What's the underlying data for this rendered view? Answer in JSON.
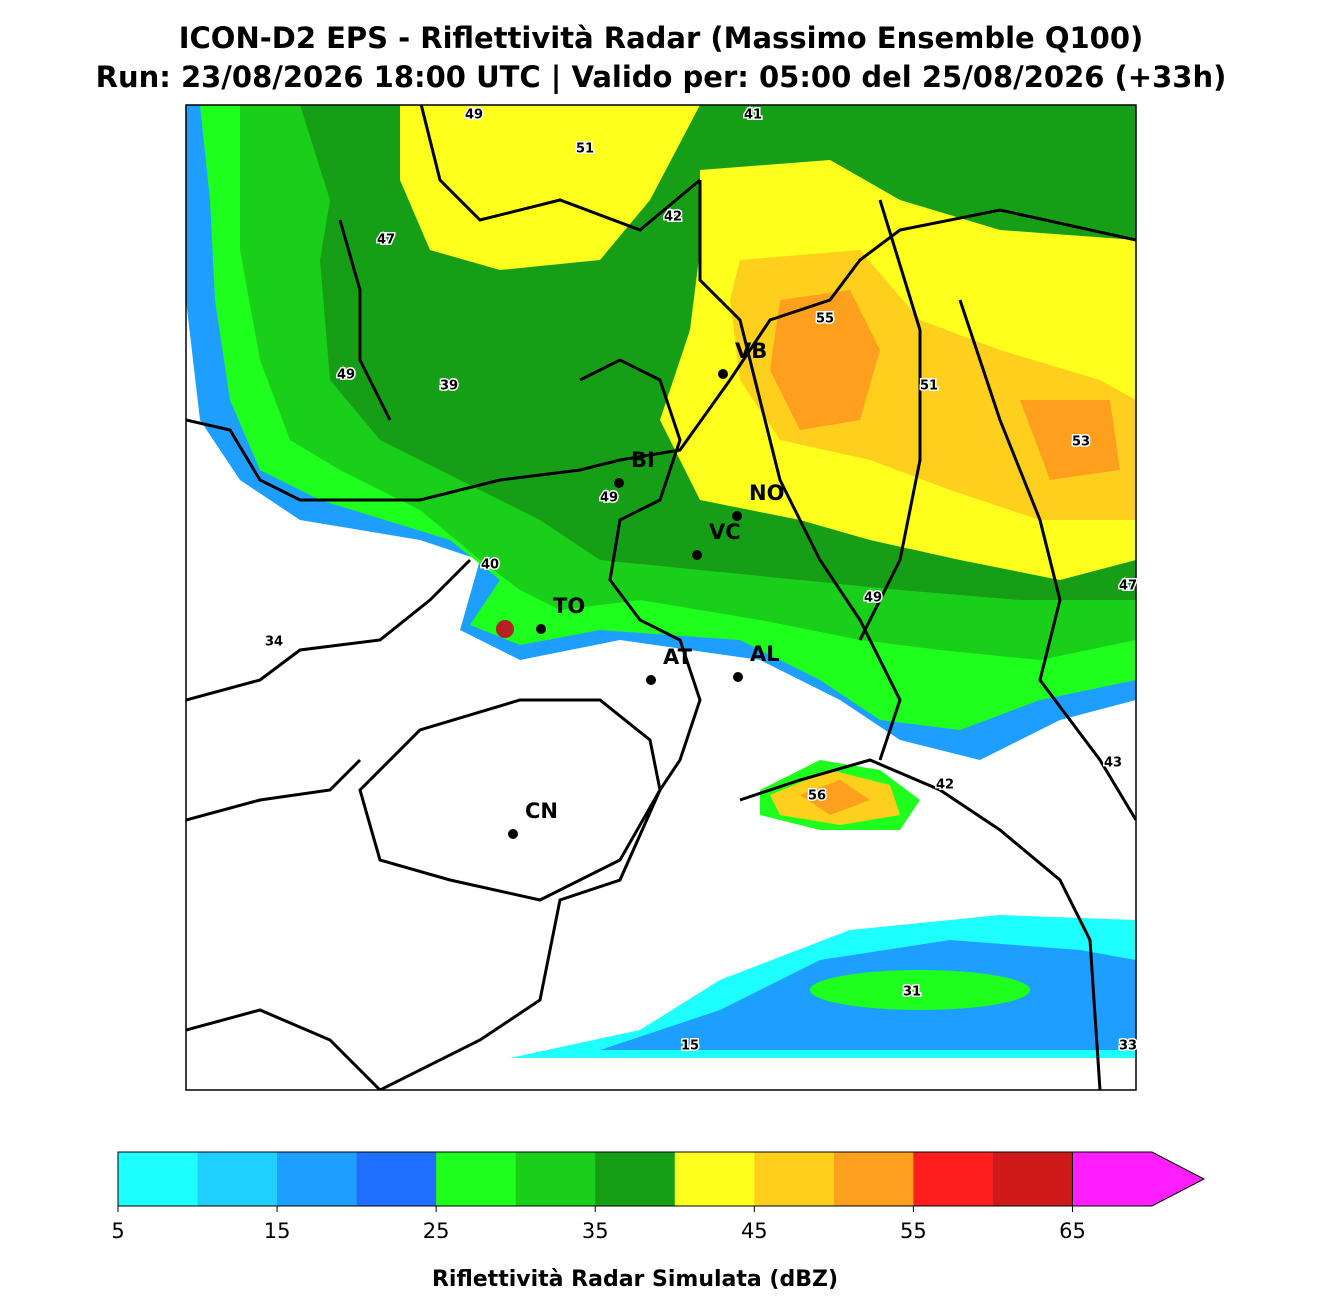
{
  "title": [
    "ICON-D2 EPS - Riflettività Radar (Massimo Ensemble Q100)",
    "Run: 23/08/2026 18:00 UTC | Valido per: 05:00 del 25/08/2026 (+33h)"
  ],
  "cities": [
    "VB",
    "BI",
    "NO",
    "VC",
    "TO",
    "AT",
    "AL",
    "CN"
  ],
  "contour_labels": [
    49,
    41,
    51,
    42,
    47,
    55,
    49,
    39,
    51,
    53,
    49,
    40,
    47,
    49,
    34,
    43,
    42,
    56,
    31,
    15,
    33
  ],
  "colorbar": {
    "range": [
      5,
      70
    ],
    "colors": [
      "#1effff",
      "#1ecfff",
      "#1e9fff",
      "#1e6fff",
      "#1eff1e",
      "#1acf1a",
      "#169f16",
      "#ffff1e",
      "#ffcf1e",
      "#ff9f1e",
      "#ff1e1e",
      "#cf1a1a",
      "#ff1eff"
    ],
    "ticks": [
      5,
      15,
      25,
      35,
      45,
      55,
      65
    ],
    "label": "Riflettività Radar Simulata (dBZ)"
  }
}
